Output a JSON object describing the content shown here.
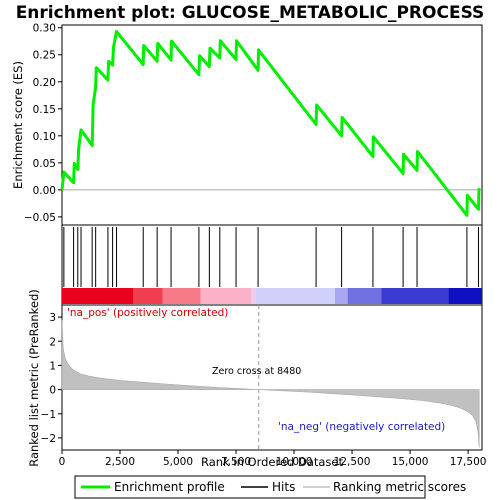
{
  "chart_data": {
    "type": "line",
    "title": "Enrichment plot: GLUCOSE_METABOLIC_PROCESS",
    "top_panel": {
      "ylabel": "Enrichment score (ES)",
      "ylim": [
        -0.065,
        0.305
      ],
      "yticks": [
        -0.05,
        0.0,
        0.05,
        0.1,
        0.15,
        0.2,
        0.25,
        0.3
      ],
      "ytick_labels": [
        "−0.05",
        "0.00",
        "0.05",
        "0.10",
        "0.15",
        "0.20",
        "0.25",
        "0.30"
      ],
      "series": {
        "name": "Enrichment profile",
        "color": "#00ee00",
        "x": [
          0,
          80,
          500,
          530,
          680,
          720,
          820,
          1300,
          1340,
          1450,
          1480,
          1980,
          2010,
          2180,
          2220,
          2350,
          3500,
          3520,
          4100,
          4130,
          4700,
          4720,
          5900,
          5930,
          6350,
          6380,
          6800,
          6820,
          7500,
          7520,
          8450,
          8470,
          10950,
          10970,
          12050,
          12070,
          13400,
          13420,
          14700,
          14720,
          15300,
          15320,
          17450,
          17470,
          17950,
          17970
        ],
        "y": [
          0,
          0.033,
          0.013,
          0.049,
          0.038,
          0.077,
          0.111,
          0.082,
          0.157,
          0.19,
          0.226,
          0.203,
          0.238,
          0.231,
          0.264,
          0.293,
          0.232,
          0.267,
          0.238,
          0.271,
          0.24,
          0.275,
          0.213,
          0.248,
          0.228,
          0.262,
          0.244,
          0.276,
          0.241,
          0.276,
          0.221,
          0.259,
          0.121,
          0.157,
          0.1,
          0.134,
          0.062,
          0.098,
          0.03,
          0.066,
          0.036,
          0.071,
          -0.047,
          -0.01,
          -0.036,
          0.003
        ]
      }
    },
    "hits": {
      "name": "Hits",
      "x": [
        80,
        500,
        680,
        820,
        1300,
        1450,
        1980,
        2180,
        2350,
        3500,
        4100,
        4700,
        5900,
        6350,
        6800,
        7500,
        8450,
        10950,
        12050,
        13400,
        14700,
        15300,
        17450,
        17950
      ]
    },
    "bottom_panel": {
      "ylabel": "Ranked list metric (PreRanked)",
      "xlabel": "Rank in Ordered Dataset",
      "ylim": [
        -2.5,
        3.5
      ],
      "yticks": [
        -2,
        -1,
        0,
        1,
        2,
        3
      ],
      "ytick_labels": [
        "−2",
        "−1",
        "0",
        "1",
        "2",
        "3"
      ],
      "series": {
        "name": "Ranking metric scores",
        "color": "#c0c0c0",
        "x": [
          0,
          50,
          150,
          300,
          500,
          800,
          1200,
          1700,
          2500,
          3500,
          4500,
          5500,
          6500,
          7500,
          8480,
          9500,
          10500,
          11500,
          12500,
          13500,
          14500,
          15500,
          16300,
          16800,
          17200,
          17500,
          17700,
          17850,
          17930,
          17980
        ],
        "y": [
          2.9,
          1.7,
          1.25,
          1.0,
          0.8,
          0.65,
          0.55,
          0.47,
          0.38,
          0.3,
          0.23,
          0.16,
          0.1,
          0.05,
          0.0,
          -0.05,
          -0.1,
          -0.16,
          -0.22,
          -0.29,
          -0.36,
          -0.45,
          -0.56,
          -0.66,
          -0.78,
          -0.92,
          -1.08,
          -1.35,
          -1.8,
          -2.4
        ]
      }
    },
    "xlim": [
      0,
      18100
    ],
    "xticks": [
      0,
      2500,
      5000,
      7500,
      10000,
      12500,
      15000,
      17500
    ],
    "xtick_labels": [
      "0",
      "2,500",
      "5,000",
      "7,500",
      "10,000",
      "12,500",
      "15,000",
      "17,500"
    ],
    "zero_cross": 8480,
    "annotations": {
      "pos_label": "'na_pos' (positively correlated)",
      "neg_label": "'na_neg' (negatively correlated)",
      "zero_label": "Zero cross at 8480"
    },
    "legend": {
      "placement": "bottom",
      "entries": [
        "Enrichment profile",
        "Hits",
        "Ranking metric scores"
      ]
    },
    "heat_colors": [
      "#e8001c",
      "#f03e50",
      "#f77a88",
      "#fbb2c8",
      "#f0c8f0",
      "#d0d0fa",
      "#a8a8f0",
      "#7070e0",
      "#3a3ad0",
      "#1010c0"
    ]
  }
}
